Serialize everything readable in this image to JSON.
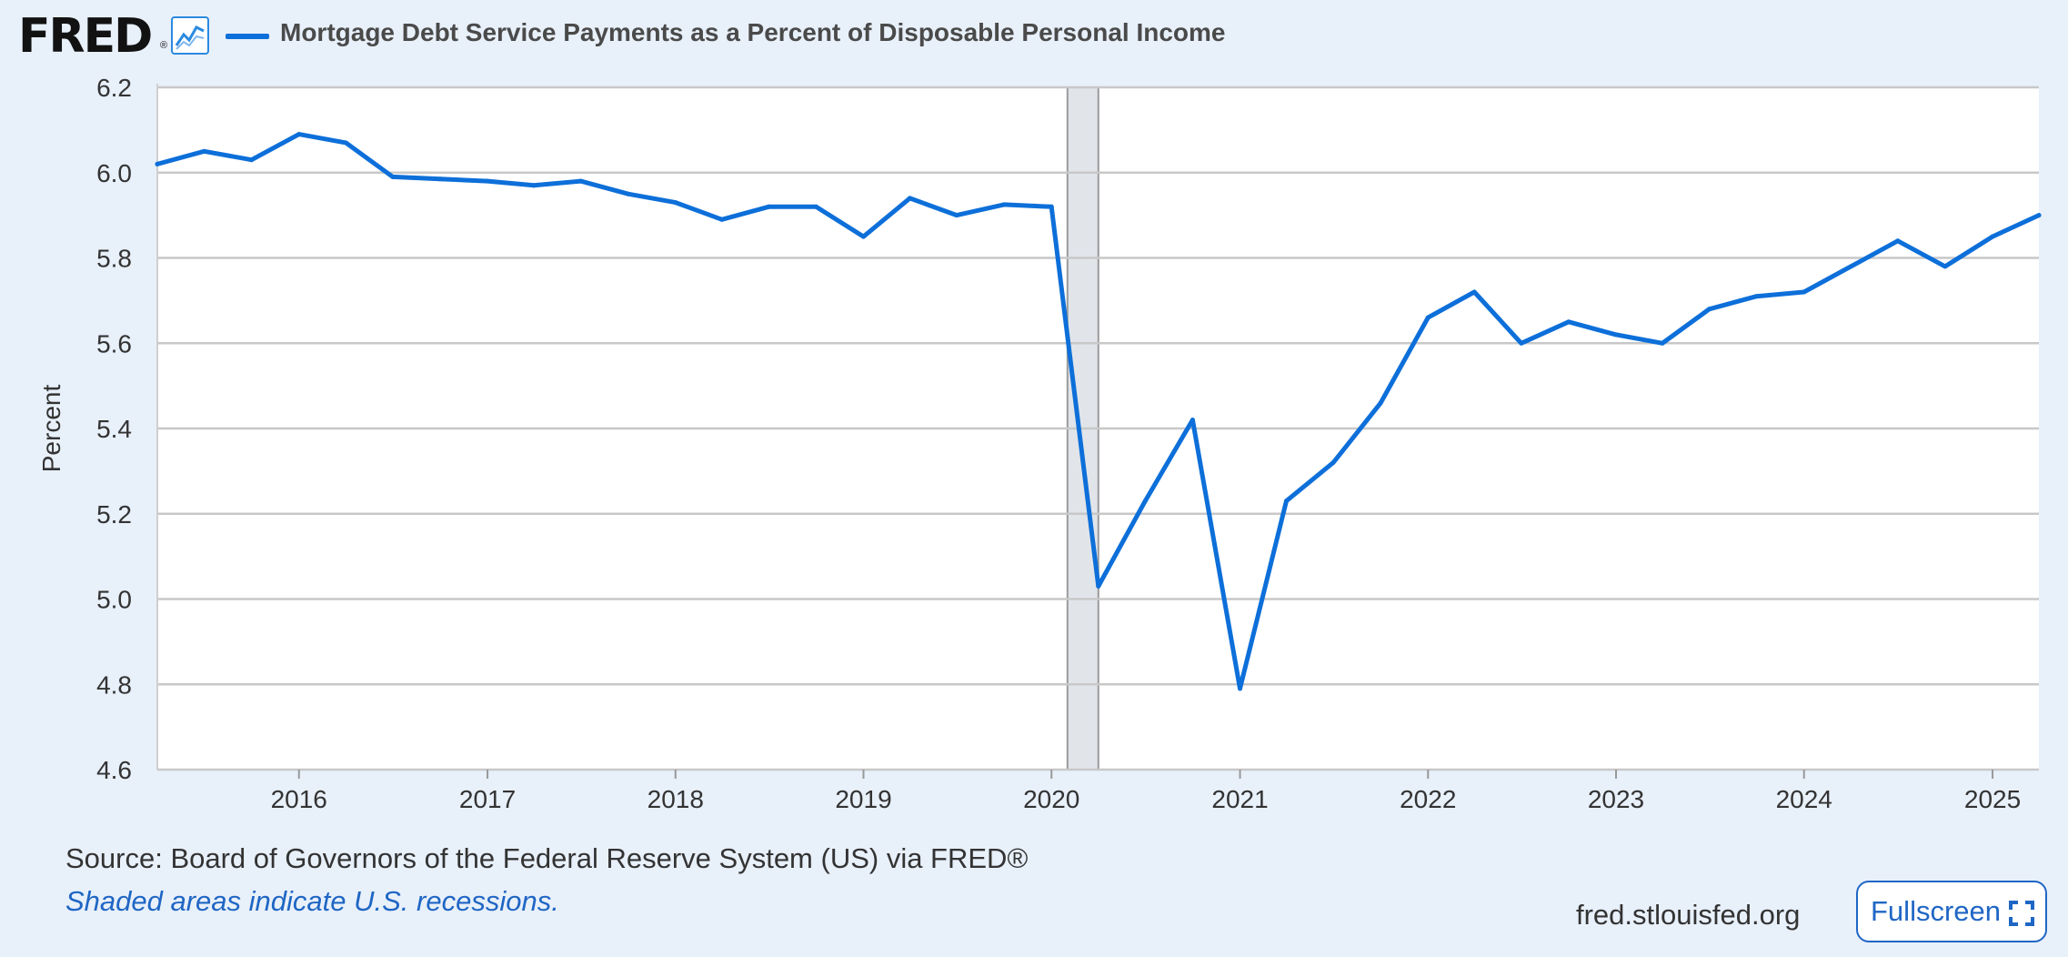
{
  "header": {
    "logo_text": "FRED",
    "logo_reg": "®",
    "series_title": "Mortgage Debt Service Payments as a Percent of Disposable Personal Income",
    "icons": [
      "fred-logo",
      "graph-icon"
    ]
  },
  "footer": {
    "source": "Source: Board of Governors of the Federal Reserve System (US) via FRED®",
    "recession_note": "Shaded areas indicate U.S. recessions.",
    "site": "fred.stlouisfed.org",
    "fullscreen_label": "Fullscreen"
  },
  "colors": {
    "series": "#0d6fd9",
    "background": "#e8f0fa",
    "plot_background": "#ffffff",
    "grid": "#c8c8c8",
    "recession_shade": "#e1e5ea",
    "link": "#1f66c4"
  },
  "chart_data": {
    "type": "line",
    "title": "Mortgage Debt Service Payments as a Percent of Disposable Personal Income",
    "xlabel": "",
    "ylabel": "Percent",
    "ylim": [
      4.6,
      6.2
    ],
    "xlim": [
      "2015-04-01",
      "2025-04-01"
    ],
    "yticks": [
      "4.6",
      "4.8",
      "5.0",
      "5.2",
      "5.4",
      "5.6",
      "5.8",
      "6.0",
      "6.2"
    ],
    "xticks": [
      "2016",
      "2017",
      "2018",
      "2019",
      "2020",
      "2021",
      "2022",
      "2023",
      "2024",
      "2025"
    ],
    "grid": true,
    "recessions": [
      {
        "start": "2020-02-01",
        "end": "2020-04-01"
      }
    ],
    "series": [
      {
        "name": "Mortgage Debt Service Payments as a Percent of Disposable Personal Income",
        "x": [
          "2015-04-01",
          "2015-07-01",
          "2015-10-01",
          "2016-01-01",
          "2016-04-01",
          "2016-07-01",
          "2016-10-01",
          "2017-01-01",
          "2017-04-01",
          "2017-07-01",
          "2017-10-01",
          "2018-01-01",
          "2018-04-01",
          "2018-07-01",
          "2018-10-01",
          "2019-01-01",
          "2019-04-01",
          "2019-07-01",
          "2019-10-01",
          "2020-01-01",
          "2020-04-01",
          "2020-07-01",
          "2020-10-01",
          "2021-01-01",
          "2021-04-01",
          "2021-07-01",
          "2021-10-01",
          "2022-01-01",
          "2022-04-01",
          "2022-07-01",
          "2022-10-01",
          "2023-01-01",
          "2023-04-01",
          "2023-07-01",
          "2023-10-01",
          "2024-01-01",
          "2024-04-01",
          "2024-07-01",
          "2024-10-01",
          "2025-01-01",
          "2025-04-01"
        ],
        "values": [
          6.02,
          6.05,
          6.03,
          6.09,
          6.07,
          5.99,
          5.985,
          5.98,
          5.97,
          5.98,
          5.95,
          5.93,
          5.89,
          5.92,
          5.92,
          5.85,
          5.94,
          5.9,
          5.925,
          5.92,
          5.03,
          5.23,
          5.42,
          4.79,
          5.23,
          5.32,
          5.46,
          5.66,
          5.72,
          5.6,
          5.65,
          5.62,
          5.6,
          5.68,
          5.71,
          5.72,
          5.78,
          5.84,
          5.78,
          5.85,
          5.9
        ]
      }
    ]
  }
}
